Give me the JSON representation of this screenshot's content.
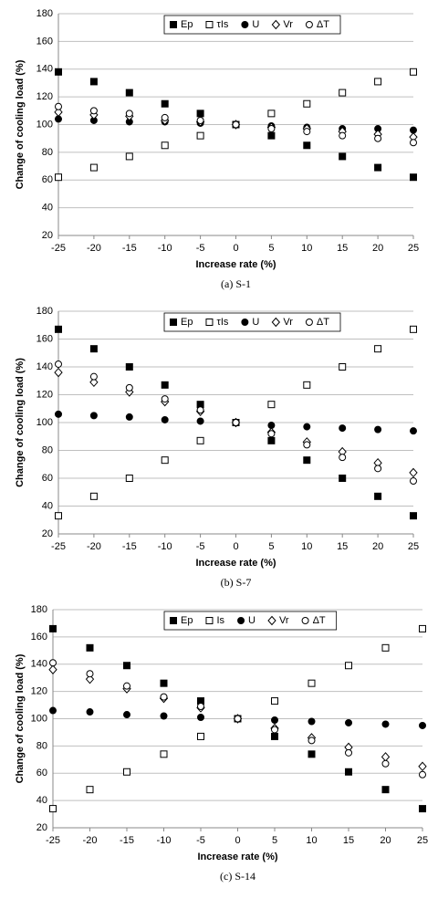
{
  "chart_data": [
    {
      "type": "scatter",
      "caption": "(a) S-1",
      "x_label": "Increase rate (%)",
      "y_label": "Change of cooling load (%)",
      "x": [
        -25,
        -20,
        -15,
        -10,
        -5,
        0,
        5,
        10,
        15,
        20,
        25
      ],
      "xlim": [
        -25,
        25
      ],
      "xticks": [
        -25,
        -20,
        -15,
        -10,
        -5,
        0,
        5,
        10,
        15,
        20,
        25
      ],
      "ylim": [
        20,
        180
      ],
      "yticks": [
        20,
        40,
        60,
        80,
        100,
        120,
        140,
        160,
        180
      ],
      "grid": true,
      "series": [
        {
          "name": "Ep",
          "color": "#000000",
          "marker": "square",
          "filled": true,
          "values": [
            138,
            131,
            123,
            115,
            108,
            100,
            92,
            85,
            77,
            69,
            62
          ]
        },
        {
          "name": "τIs",
          "color": "#000000",
          "marker": "square",
          "filled": false,
          "values": [
            62,
            69,
            77,
            85,
            92,
            100,
            108,
            115,
            123,
            131,
            138
          ]
        },
        {
          "name": "U",
          "color": "#000000",
          "marker": "circle",
          "filled": true,
          "values": [
            104,
            103,
            102,
            102,
            101,
            100,
            99,
            98,
            97,
            97,
            96
          ]
        },
        {
          "name": "Vr",
          "color": "#000000",
          "marker": "diamond",
          "filled": false,
          "values": [
            109,
            107,
            106,
            103,
            102,
            100,
            98,
            97,
            95,
            93,
            91
          ]
        },
        {
          "name": "ΔT",
          "color": "#000000",
          "marker": "circle",
          "filled": false,
          "values": [
            113,
            110,
            108,
            105,
            103,
            100,
            97,
            95,
            92,
            90,
            87
          ]
        }
      ]
    },
    {
      "type": "scatter",
      "caption": "(b) S-7",
      "x_label": "Increase rate (%)",
      "y_label": "Change of cooling load (%)",
      "x": [
        -25,
        -20,
        -15,
        -10,
        -5,
        0,
        5,
        10,
        15,
        20,
        25
      ],
      "xlim": [
        -25,
        25
      ],
      "xticks": [
        -25,
        -20,
        -15,
        -10,
        -5,
        0,
        5,
        10,
        15,
        20,
        25
      ],
      "ylim": [
        20,
        180
      ],
      "yticks": [
        20,
        40,
        60,
        80,
        100,
        120,
        140,
        160,
        180
      ],
      "grid": true,
      "series": [
        {
          "name": "Ep",
          "color": "#000000",
          "marker": "square",
          "filled": true,
          "values": [
            167,
            153,
            140,
            127,
            113,
            100,
            87,
            73,
            60,
            47,
            33
          ]
        },
        {
          "name": "τIs",
          "color": "#000000",
          "marker": "square",
          "filled": false,
          "values": [
            33,
            47,
            60,
            73,
            87,
            100,
            113,
            127,
            140,
            153,
            167
          ]
        },
        {
          "name": "U",
          "color": "#000000",
          "marker": "circle",
          "filled": true,
          "values": [
            106,
            105,
            104,
            102,
            101,
            100,
            98,
            97,
            96,
            95,
            94
          ]
        },
        {
          "name": "Vr",
          "color": "#000000",
          "marker": "diamond",
          "filled": false,
          "values": [
            136,
            129,
            122,
            115,
            108,
            100,
            93,
            86,
            79,
            71,
            64
          ]
        },
        {
          "name": "ΔT",
          "color": "#000000",
          "marker": "circle",
          "filled": false,
          "values": [
            142,
            133,
            125,
            117,
            109,
            100,
            92,
            84,
            75,
            67,
            58
          ]
        }
      ]
    },
    {
      "type": "scatter",
      "caption": "(c) S-14",
      "x_label": "Increase rate (%)",
      "y_label": "Change of cooling load (%)",
      "x": [
        -25,
        -20,
        -15,
        -10,
        -5,
        0,
        5,
        10,
        15,
        20,
        25
      ],
      "xlim": [
        -25,
        25
      ],
      "xticks": [
        -25,
        -20,
        -15,
        -10,
        -5,
        0,
        5,
        10,
        15,
        20,
        25
      ],
      "ylim": [
        20,
        180
      ],
      "yticks": [
        20,
        40,
        60,
        80,
        100,
        120,
        140,
        160,
        180
      ],
      "grid": true,
      "series": [
        {
          "name": "Ep",
          "color": "#000000",
          "marker": "square",
          "filled": true,
          "values": [
            166,
            152,
            139,
            126,
            113,
            100,
            87,
            74,
            61,
            48,
            34
          ]
        },
        {
          "name": "Is",
          "color": "#000000",
          "marker": "square",
          "filled": false,
          "values": [
            34,
            48,
            61,
            74,
            87,
            100,
            113,
            126,
            139,
            152,
            166
          ]
        },
        {
          "name": "U",
          "color": "#000000",
          "marker": "circle",
          "filled": true,
          "values": [
            106,
            105,
            103,
            102,
            101,
            100,
            99,
            98,
            97,
            96,
            95
          ]
        },
        {
          "name": "Vr",
          "color": "#000000",
          "marker": "diamond",
          "filled": false,
          "values": [
            136,
            129,
            122,
            115,
            108,
            100,
            93,
            86,
            79,
            72,
            65
          ]
        },
        {
          "name": "ΔT",
          "color": "#000000",
          "marker": "circle",
          "filled": false,
          "values": [
            141,
            133,
            124,
            116,
            109,
            100,
            92,
            84,
            75,
            67,
            59
          ]
        }
      ]
    }
  ]
}
